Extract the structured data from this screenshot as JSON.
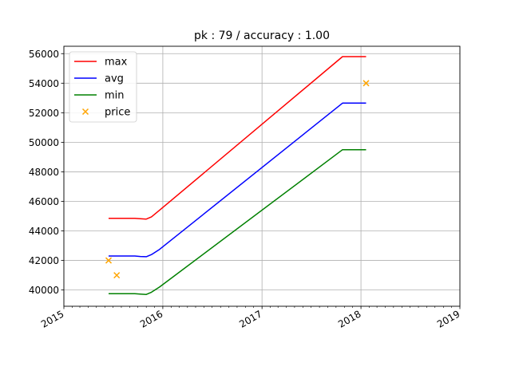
{
  "chart_data": {
    "type": "line",
    "title": "pk : 79 / accuracy : 1.00",
    "xlabel": "",
    "ylabel": "",
    "x_axis": {
      "kind": "date",
      "range": [
        "2015-01-01",
        "2019-01-01"
      ],
      "ticks": [
        {
          "date": "2015-01-01",
          "label": "2015"
        },
        {
          "date": "2016-01-01",
          "label": "2016"
        },
        {
          "date": "2017-01-01",
          "label": "2017"
        },
        {
          "date": "2018-01-01",
          "label": "2018"
        },
        {
          "date": "2019-01-01",
          "label": "2019"
        }
      ],
      "label_rotation_deg": 30
    },
    "y_axis": {
      "range": [
        38900,
        56500
      ],
      "ticks": [
        40000,
        42000,
        44000,
        46000,
        48000,
        50000,
        52000,
        54000,
        56000
      ],
      "tick_labels": [
        "40000",
        "42000",
        "44000",
        "46000",
        "48000",
        "50000",
        "52000",
        "54000",
        "56000"
      ]
    },
    "grid": true,
    "legend": {
      "placement": "top-left"
    },
    "series": [
      {
        "name": "max",
        "style": "line",
        "color": "#ff0000",
        "points": [
          {
            "x": "2015-06-15",
            "y": 44850
          },
          {
            "x": "2015-09-20",
            "y": 44850
          },
          {
            "x": "2015-10-10",
            "y": 44820
          },
          {
            "x": "2015-11-01",
            "y": 44800
          },
          {
            "x": "2015-11-20",
            "y": 44950
          },
          {
            "x": "2015-12-20",
            "y": 45400
          },
          {
            "x": "2017-10-25",
            "y": 55800
          },
          {
            "x": "2018-01-20",
            "y": 55800
          }
        ]
      },
      {
        "name": "avg",
        "style": "line",
        "color": "#0000ff",
        "points": [
          {
            "x": "2015-06-15",
            "y": 42300
          },
          {
            "x": "2015-09-20",
            "y": 42300
          },
          {
            "x": "2015-10-10",
            "y": 42270
          },
          {
            "x": "2015-11-01",
            "y": 42250
          },
          {
            "x": "2015-11-20",
            "y": 42400
          },
          {
            "x": "2015-12-20",
            "y": 42750
          },
          {
            "x": "2017-10-25",
            "y": 52650
          },
          {
            "x": "2018-01-20",
            "y": 52650
          }
        ]
      },
      {
        "name": "min",
        "style": "line",
        "color": "#008000",
        "points": [
          {
            "x": "2015-06-15",
            "y": 39750
          },
          {
            "x": "2015-09-20",
            "y": 39750
          },
          {
            "x": "2015-10-10",
            "y": 39720
          },
          {
            "x": "2015-11-01",
            "y": 39700
          },
          {
            "x": "2015-11-20",
            "y": 39850
          },
          {
            "x": "2015-12-20",
            "y": 40200
          },
          {
            "x": "2017-10-25",
            "y": 49500
          },
          {
            "x": "2018-01-20",
            "y": 49500
          }
        ]
      },
      {
        "name": "price",
        "style": "scatter",
        "marker": "x",
        "color": "#ffa500",
        "points": [
          {
            "x": "2015-06-15",
            "y": 42000
          },
          {
            "x": "2015-07-15",
            "y": 41000
          },
          {
            "x": "2018-01-20",
            "y": 54000
          }
        ]
      }
    ]
  }
}
